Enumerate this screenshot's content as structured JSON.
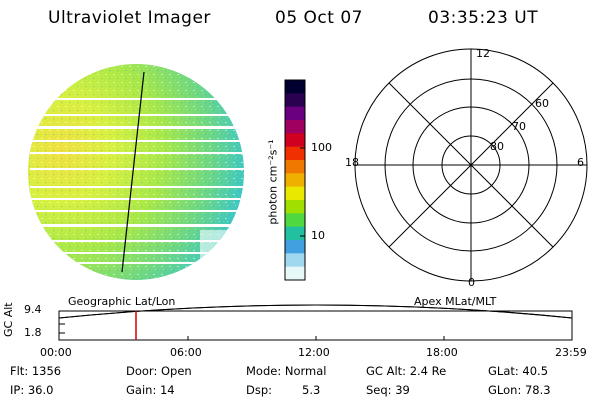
{
  "header": {
    "title": "Ultraviolet Imager",
    "date": "05 Oct 07",
    "time": "03:35:23 UT"
  },
  "colorbar": {
    "unit_label": "photon cm⁻²s⁻¹",
    "ticks": [
      "100",
      "10"
    ],
    "colors": [
      "#000030",
      "#2a0050",
      "#6a0080",
      "#a00060",
      "#d00020",
      "#f03000",
      "#f07800",
      "#f0b000",
      "#e8e800",
      "#a0e000",
      "#50d840",
      "#20c0a0",
      "#40a0e0",
      "#a0d8f0",
      "#e8f8f8"
    ]
  },
  "polar_plot": {
    "mlt_labels": {
      "top": "12",
      "left": "18",
      "right": "6",
      "bottom": "0"
    },
    "lat_labels": [
      "60",
      "70",
      "80"
    ]
  },
  "timeline": {
    "ylabel": "GC Alt",
    "yticks": [
      "9.4",
      "1.8"
    ],
    "left_label": "Geographic Lat/Lon",
    "right_label": "Apex MLat/MLT",
    "xticks": [
      "00:00",
      "06:00",
      "12:00",
      "18:00",
      "23:59"
    ]
  },
  "info": {
    "flt": "Flt: 1356",
    "ip": "IP: 36.0",
    "door": "Door: Open",
    "gain": "Gain: 14",
    "mode": "Mode: Normal",
    "dsp_label": "Dsp:",
    "dsp_value": "5.3",
    "gcalt": "GC Alt: 2.4 Re",
    "seq": "Seq: 39",
    "glat": "GLat: 40.5",
    "glon": "GLon: 78.3"
  }
}
